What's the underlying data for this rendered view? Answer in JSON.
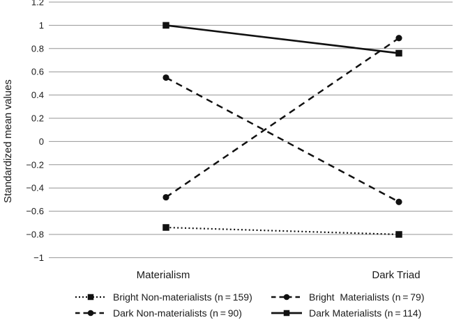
{
  "figure": {
    "background": "#ffffff",
    "text_color": "#1a1a1a",
    "gridline_color": "#949494",
    "series_color": "#111111"
  },
  "chart_data": {
    "type": "line",
    "title": "",
    "xlabel": "",
    "ylabel": "Standardized mean values",
    "categories": [
      "Materialism",
      "Dark Triad"
    ],
    "ylim": [
      -1,
      1.2
    ],
    "grid": "horizontal-only",
    "legend_position": "bottom",
    "yticks": [
      {
        "value": 1.2,
        "label": "1.2"
      },
      {
        "value": 1.0,
        "label": "1"
      },
      {
        "value": 0.8,
        "label": "0.8"
      },
      {
        "value": 0.6,
        "label": "0.6"
      },
      {
        "value": 0.4,
        "label": "0.4"
      },
      {
        "value": 0.2,
        "label": "0.2"
      },
      {
        "value": 0.0,
        "label": "0"
      },
      {
        "value": -0.2,
        "label": "−0.2"
      },
      {
        "value": -0.4,
        "label": "−0.4"
      },
      {
        "value": -0.6,
        "label": "−0.6"
      },
      {
        "value": -0.8,
        "label": "−0.8"
      },
      {
        "value": -1.0,
        "label": "−1"
      }
    ],
    "series": [
      {
        "name": "Bright Non-materialists (n = 159)",
        "values": [
          -0.74,
          -0.8
        ],
        "line_style": "dotted",
        "marker": "square"
      },
      {
        "name": "Dark Non-materialists (n = 90)",
        "values": [
          -0.48,
          0.89
        ],
        "line_style": "dashed",
        "marker": "circle"
      },
      {
        "name": "Bright  Materialists (n = 79)",
        "values": [
          0.55,
          -0.52
        ],
        "line_style": "dashed",
        "marker": "circle"
      },
      {
        "name": "Dark Materialists (n = 114)",
        "values": [
          1.0,
          0.76
        ],
        "line_style": "solid",
        "marker": "square"
      }
    ],
    "legend_order": [
      0,
      2,
      1,
      3
    ]
  }
}
